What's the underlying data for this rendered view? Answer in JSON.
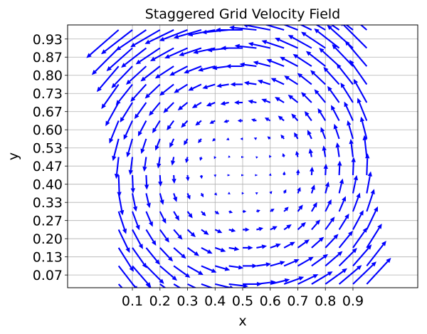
{
  "chart_data": {
    "type": "quiver",
    "title": "Staggered Grid Velocity Field",
    "xlabel": "x",
    "ylabel": "y",
    "xlim": [
      -0.135,
      1.135
    ],
    "ylim": [
      0.02,
      0.985
    ],
    "grid": true,
    "arrow_color": "#0000ff",
    "grid_color": "#b0b0b0",
    "x_ticks": [
      0.1,
      0.2,
      0.3,
      0.4,
      0.5,
      0.6,
      0.7,
      0.8,
      0.9
    ],
    "x_tick_labels": [
      "0.1",
      "0.2",
      "0.3",
      "0.4",
      "0.5",
      "0.6",
      "0.7",
      "0.8",
      "0.9"
    ],
    "y_ticks": [
      0.0667,
      0.1333,
      0.2,
      0.2667,
      0.3333,
      0.4,
      0.4667,
      0.5333,
      0.6,
      0.6667,
      0.7333,
      0.8,
      0.8667,
      0.9333
    ],
    "y_tick_labels": [
      "0.07",
      "0.13",
      "0.20",
      "0.27",
      "0.33",
      "0.40",
      "0.47",
      "0.53",
      "0.60",
      "0.67",
      "0.73",
      "0.80",
      "0.87",
      "0.93"
    ],
    "u_positions_x": [
      0.1,
      0.2,
      0.3,
      0.4,
      0.5,
      0.6,
      0.7,
      0.8,
      0.9
    ],
    "v_positions_x": [
      0.05,
      0.15,
      0.25,
      0.35,
      0.45,
      0.55,
      0.65,
      0.75,
      0.85,
      0.95
    ],
    "arrows_at_positions_y": [
      0.0333,
      0.1,
      0.1667,
      0.2333,
      0.3,
      0.3667,
      0.4333,
      0.5,
      0.5667,
      0.6333,
      0.7,
      0.7667,
      0.8333,
      0.9,
      0.9667
    ]
  }
}
